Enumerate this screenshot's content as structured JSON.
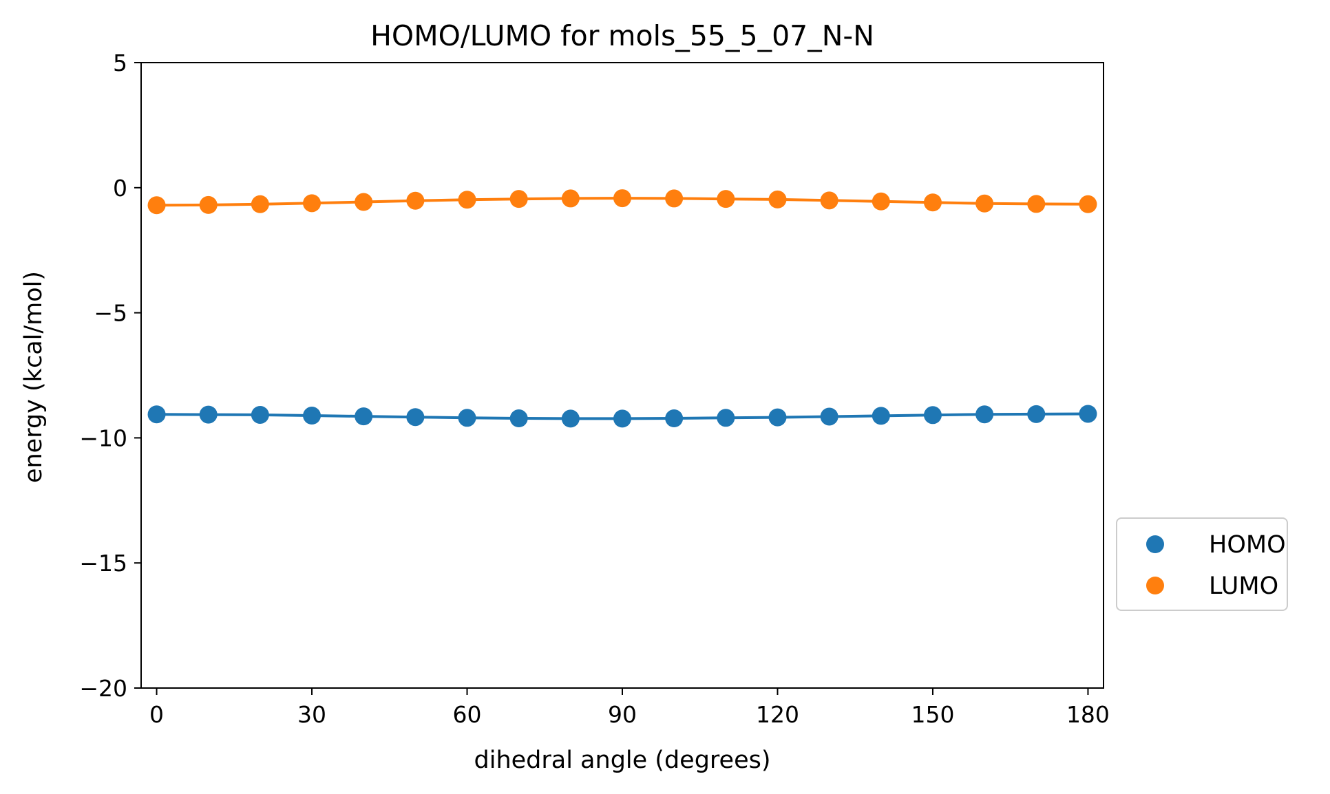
{
  "chart_data": {
    "type": "line",
    "title": "HOMO/LUMO for mols_55_5_07_N-N",
    "xlabel": "dihedral angle (degrees)",
    "ylabel": "energy (kcal/mol)",
    "xlim": [
      -3,
      183
    ],
    "ylim": [
      -20,
      5
    ],
    "xticks": [
      0,
      30,
      60,
      90,
      120,
      150,
      180
    ],
    "xtick_labels": [
      "0",
      "30",
      "60",
      "90",
      "120",
      "150",
      "180"
    ],
    "yticks": [
      5,
      0,
      -5,
      -10,
      -15,
      -20
    ],
    "ytick_labels": [
      "5",
      "0",
      "−5",
      "−10",
      "−15",
      "−20"
    ],
    "grid": false,
    "legend_position": "outside-right-bottom",
    "x": [
      0,
      10,
      20,
      30,
      40,
      50,
      60,
      70,
      80,
      90,
      100,
      110,
      120,
      130,
      140,
      150,
      160,
      170,
      180
    ],
    "series": [
      {
        "name": "HOMO",
        "color": "#1f77b4",
        "marker": "circle",
        "values": [
          -9.06,
          -9.07,
          -9.08,
          -9.11,
          -9.14,
          -9.17,
          -9.2,
          -9.22,
          -9.23,
          -9.23,
          -9.22,
          -9.2,
          -9.18,
          -9.15,
          -9.12,
          -9.09,
          -9.06,
          -9.05,
          -9.04
        ]
      },
      {
        "name": "LUMO",
        "color": "#ff7f0e",
        "marker": "circle",
        "values": [
          -0.7,
          -0.69,
          -0.66,
          -0.62,
          -0.57,
          -0.52,
          -0.48,
          -0.45,
          -0.43,
          -0.42,
          -0.43,
          -0.45,
          -0.47,
          -0.51,
          -0.55,
          -0.59,
          -0.63,
          -0.65,
          -0.66
        ]
      }
    ]
  }
}
